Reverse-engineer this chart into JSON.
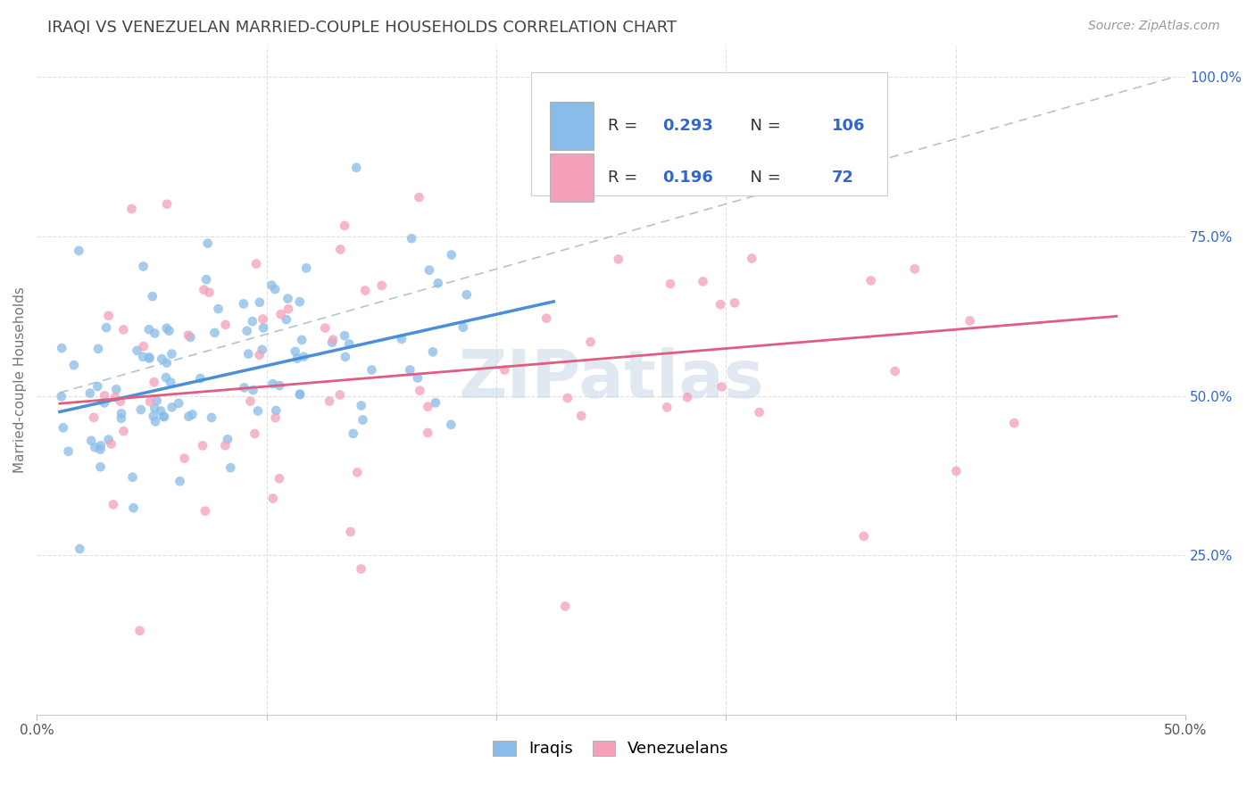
{
  "title": "IRAQI VS VENEZUELAN MARRIED-COUPLE HOUSEHOLDS CORRELATION CHART",
  "source": "Source: ZipAtlas.com",
  "ylabel": "Married-couple Households",
  "xlim": [
    0.0,
    0.5
  ],
  "ylim": [
    0.0,
    1.05
  ],
  "y_ticks_right": [
    0.25,
    0.5,
    0.75,
    1.0
  ],
  "y_tick_labels_right": [
    "25.0%",
    "50.0%",
    "75.0%",
    "100.0%"
  ],
  "legend_R_iraqi": "0.293",
  "legend_N_iraqi": "106",
  "legend_R_venezuelan": "0.196",
  "legend_N_venezuelan": "72",
  "iraqi_color": "#89bce8",
  "venezuelan_color": "#f4a0b8",
  "trend_iraqi_color": "#4a90d9",
  "trend_venezuelan_color": "#e05c80",
  "dashed_line_color": "#b0c4d8",
  "watermark_color": "#c8d8e8",
  "title_fontsize": 13,
  "source_fontsize": 10,
  "legend_fontsize": 13,
  "axis_label_fontsize": 11,
  "tick_fontsize": 11,
  "legend_text_color": "#3366cc",
  "title_color": "#444444",
  "trend_iraqi_x0": 0.01,
  "trend_iraqi_x1": 0.225,
  "trend_iraqi_y0": 0.475,
  "trend_iraqi_y1": 0.648,
  "trend_venezuelan_x0": 0.01,
  "trend_venezuelan_x1": 0.47,
  "trend_venezuelan_y0": 0.488,
  "trend_venezuelan_y1": 0.625,
  "dashed_line_x0": 0.01,
  "dashed_line_x1": 0.495,
  "dashed_line_y0": 0.505,
  "dashed_line_y1": 1.0
}
